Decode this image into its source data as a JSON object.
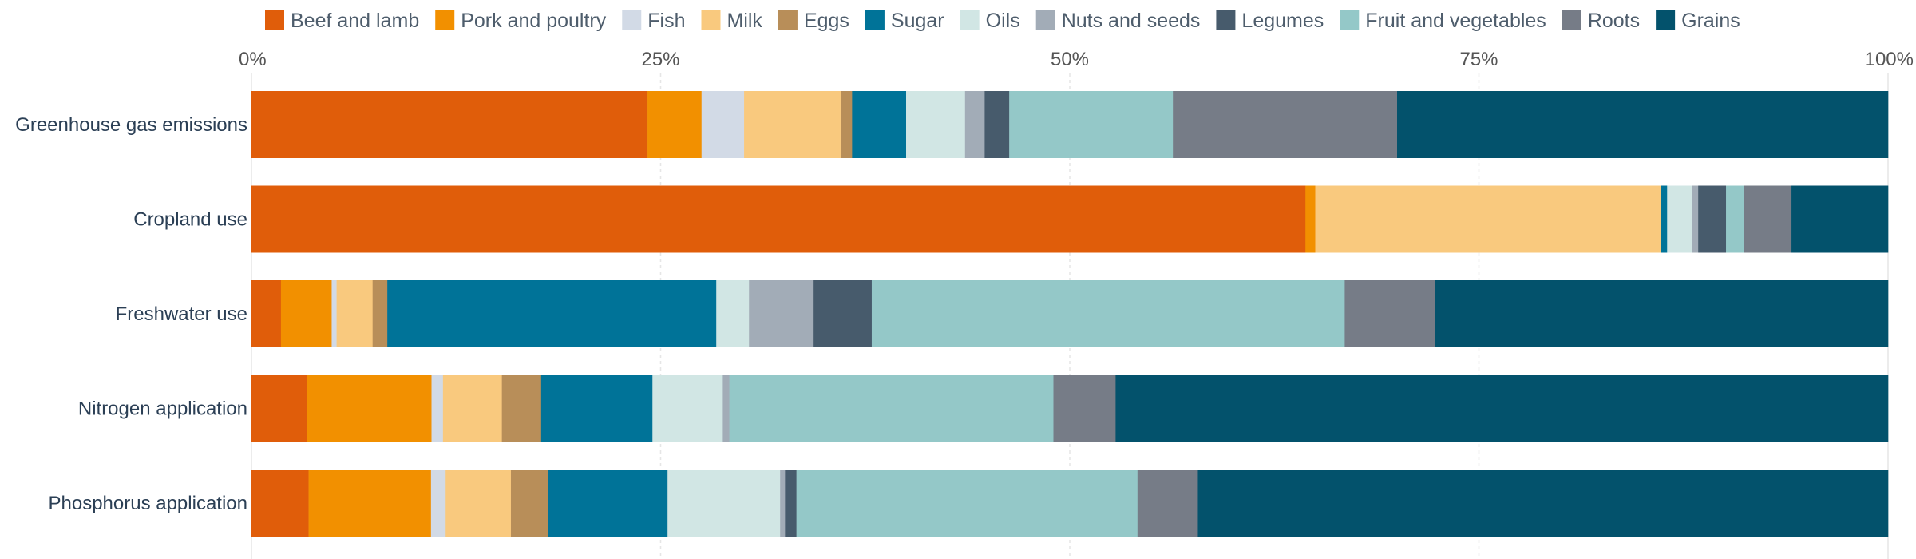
{
  "chart_data": {
    "type": "bar",
    "orientation": "horizontal",
    "stacked": true,
    "normalized": true,
    "categories": [
      "Greenhouse gas emissions",
      "Cropland use",
      "Freshwater use",
      "Nitrogen application",
      "Phosphorus application"
    ],
    "series": [
      {
        "name": "Beef and lamb",
        "color": "#e05d0a",
        "values": [
          24.2,
          64.4,
          1.8,
          3.4,
          3.5
        ]
      },
      {
        "name": "Pork and poultry",
        "color": "#f29000",
        "values": [
          3.3,
          0.6,
          3.1,
          7.6,
          7.5
        ]
      },
      {
        "name": "Fish",
        "color": "#d2dae6",
        "values": [
          2.6,
          0.0,
          0.3,
          0.7,
          0.9
        ]
      },
      {
        "name": "Milk",
        "color": "#f9c97e",
        "values": [
          5.9,
          21.1,
          2.2,
          3.6,
          4.0
        ]
      },
      {
        "name": "Eggs",
        "color": "#b88e59",
        "values": [
          0.7,
          0.0,
          0.9,
          2.4,
          2.3
        ]
      },
      {
        "name": "Sugar",
        "color": "#007398",
        "values": [
          3.3,
          0.4,
          20.1,
          6.8,
          7.3
        ]
      },
      {
        "name": "Oils",
        "color": "#d1e6e4",
        "values": [
          3.6,
          1.5,
          2.0,
          4.3,
          6.9
        ]
      },
      {
        "name": "Nuts and seeds",
        "color": "#a2acb7",
        "values": [
          1.2,
          0.4,
          3.9,
          0.4,
          0.3
        ]
      },
      {
        "name": "Legumes",
        "color": "#475b6c",
        "values": [
          1.5,
          1.7,
          3.6,
          0.0,
          0.7
        ]
      },
      {
        "name": "Fruit and vegetables",
        "color": "#94c8c8",
        "values": [
          10.0,
          1.1,
          28.9,
          19.8,
          20.9
        ]
      },
      {
        "name": "Roots",
        "color": "#767c87",
        "values": [
          13.7,
          2.9,
          5.5,
          3.8,
          3.7
        ]
      },
      {
        "name": "Grains",
        "color": "#03526c",
        "values": [
          30.0,
          5.9,
          27.7,
          47.2,
          42.3
        ]
      }
    ],
    "x_ticks": [
      "0%",
      "25%",
      "50%",
      "75%",
      "100%"
    ],
    "xlim": [
      0,
      100
    ],
    "x_axis_position": "top",
    "grid": true,
    "legend_position": "top",
    "title": "",
    "xlabel": "",
    "ylabel": ""
  }
}
